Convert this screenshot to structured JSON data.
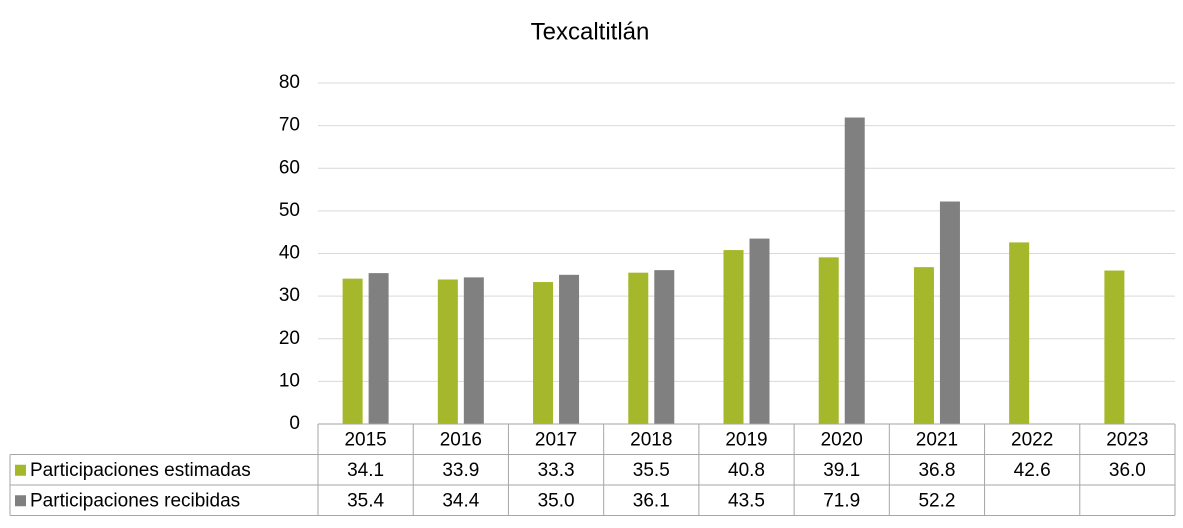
{
  "chart_data": {
    "type": "bar",
    "title": "Texcaltitlán",
    "categories": [
      "2015",
      "2016",
      "2017",
      "2018",
      "2019",
      "2020",
      "2021",
      "2022",
      "2023"
    ],
    "series": [
      {
        "name": "Participaciones estimadas",
        "color": "#a5b72a",
        "values": [
          34.1,
          33.9,
          33.3,
          35.5,
          40.8,
          39.1,
          36.8,
          42.6,
          36.0
        ],
        "value_labels": [
          "34.1",
          "33.9",
          "33.3",
          "35.5",
          "40.8",
          "39.1",
          "36.8",
          "42.6",
          "36.0"
        ]
      },
      {
        "name": "Participaciones recibidas",
        "color": "#808080",
        "values": [
          35.4,
          34.4,
          35.0,
          36.1,
          43.5,
          71.9,
          52.2,
          null,
          null
        ],
        "value_labels": [
          "35.4",
          "34.4",
          "35.0",
          "36.1",
          "43.5",
          "71.9",
          "52.2",
          null,
          null
        ]
      }
    ],
    "ylim": [
      0,
      80
    ],
    "yticks": [
      0,
      10,
      20,
      30,
      40,
      50,
      60,
      70,
      80
    ],
    "grid": true,
    "data_table": true
  }
}
